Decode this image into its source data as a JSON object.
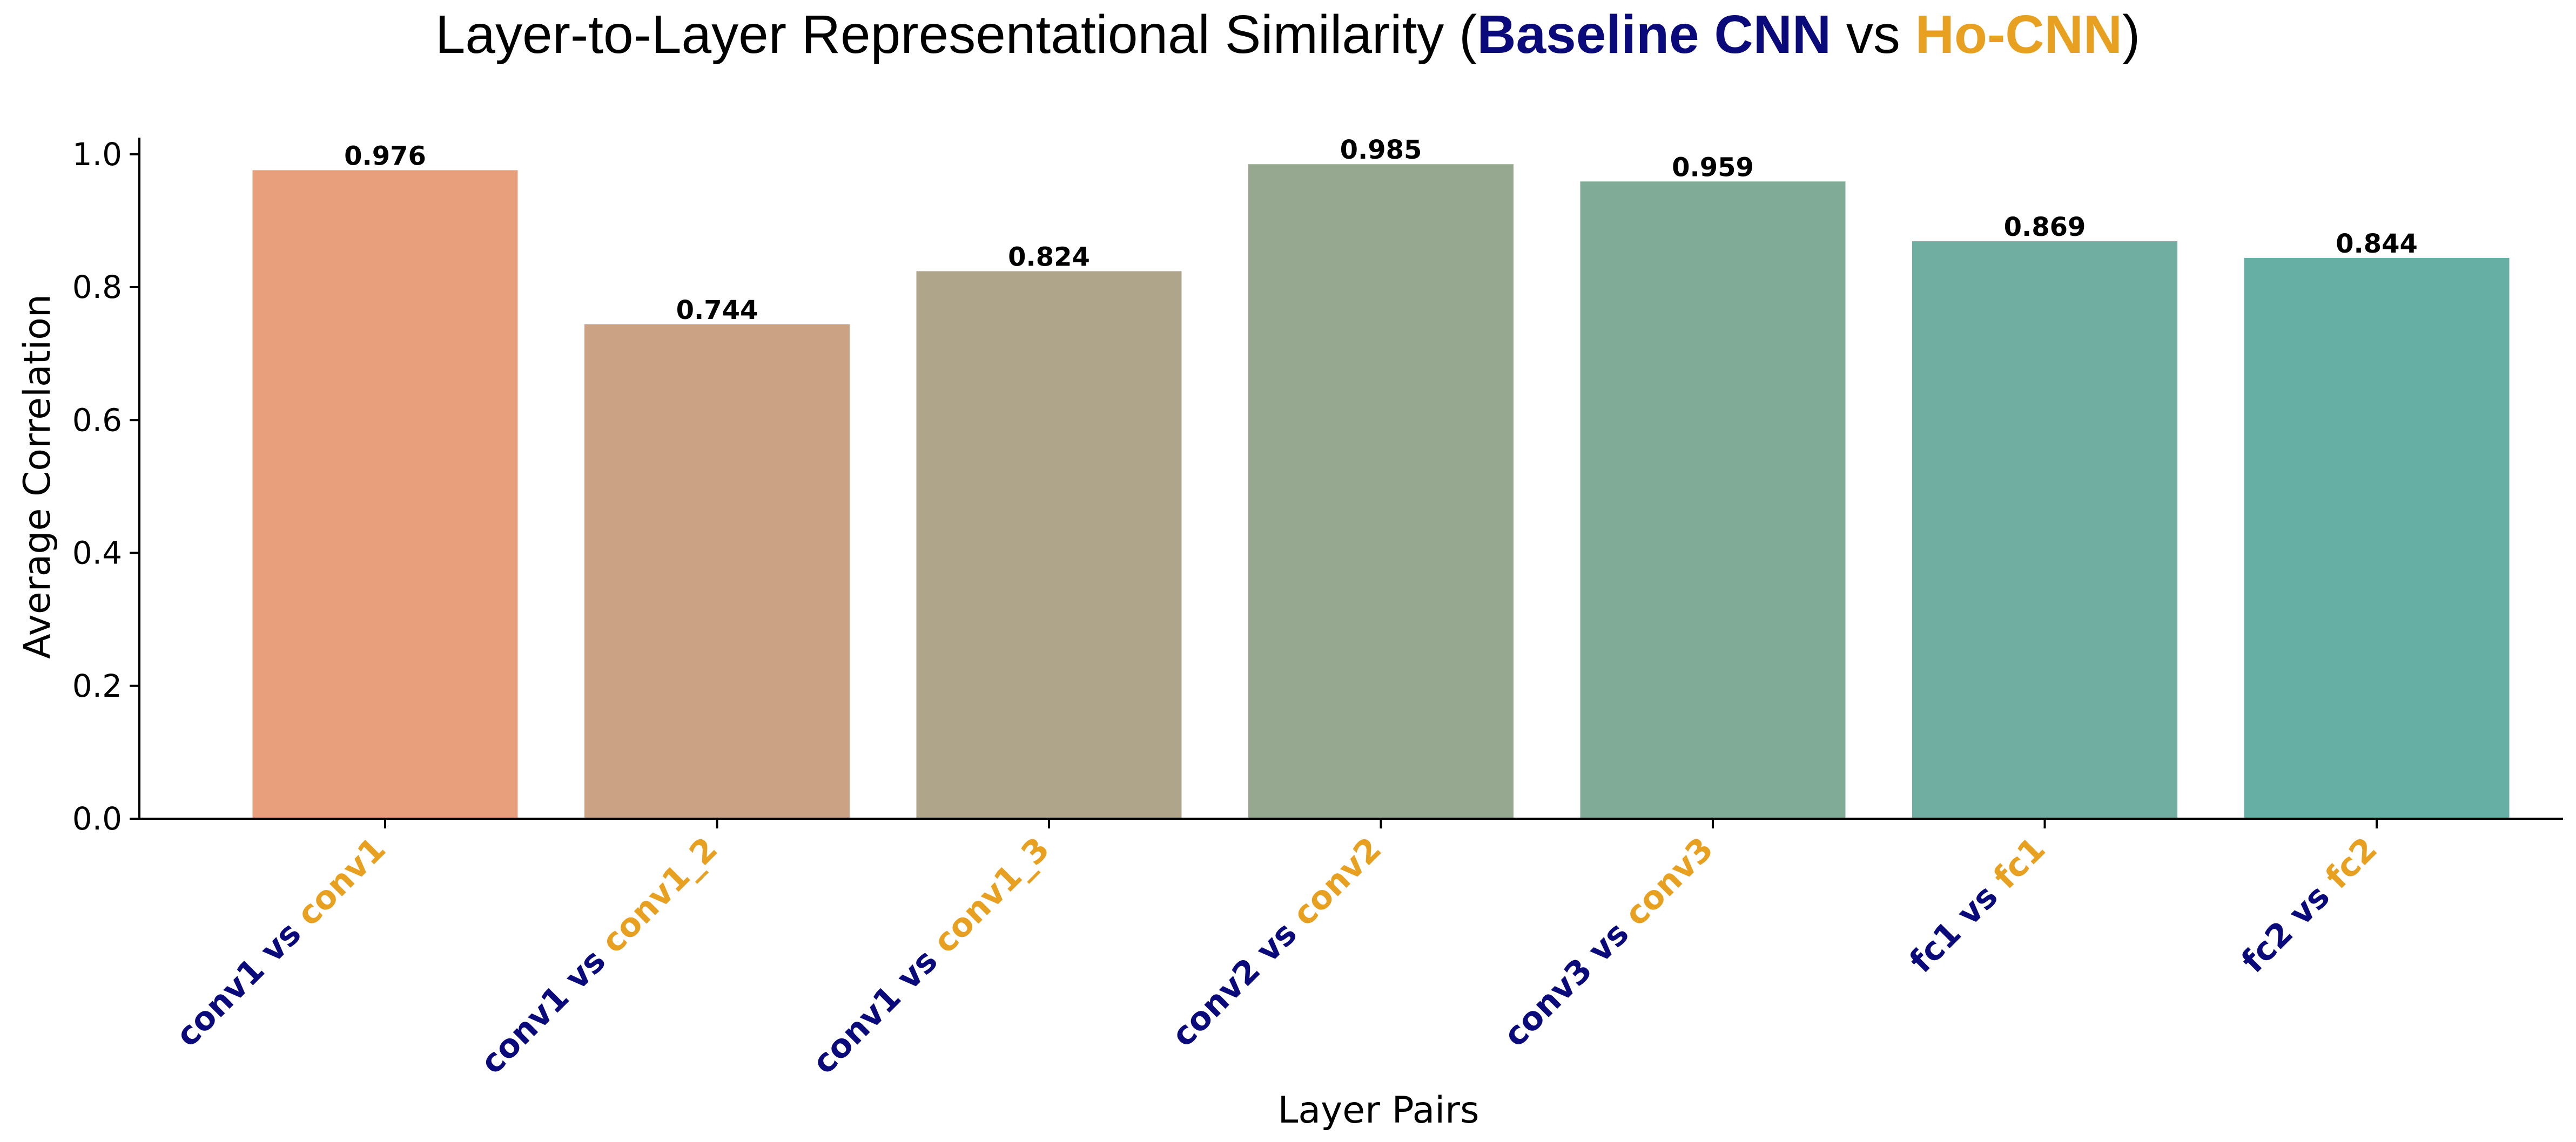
{
  "chart_data": {
    "type": "bar",
    "title": {
      "prefix": "Layer-to-Layer Representational Similarity (",
      "model_a": "Baseline CNN",
      "connector": " vs ",
      "model_b": "Ho-CNN",
      "suffix": ")"
    },
    "xlabel": "Layer Pairs",
    "ylabel": "Average Correlation",
    "ylim": [
      0,
      1.0
    ],
    "yticks": [
      "0.0",
      "0.2",
      "0.4",
      "0.6",
      "0.8",
      "1.0"
    ],
    "grid": false,
    "categories": [
      {
        "left": "conv1",
        "vs": " vs ",
        "right": "conv1"
      },
      {
        "left": "conv1",
        "vs": " vs ",
        "right": "conv1_2"
      },
      {
        "left": "conv1",
        "vs": " vs ",
        "right": "conv1_3"
      },
      {
        "left": "conv2",
        "vs": " vs ",
        "right": "conv2"
      },
      {
        "left": "conv3",
        "vs": " vs ",
        "right": "conv3"
      },
      {
        "left": "fc1",
        "vs": " vs ",
        "right": "fc1"
      },
      {
        "left": "fc2",
        "vs": " vs ",
        "right": "fc2"
      }
    ],
    "values": [
      0.976,
      0.744,
      0.824,
      0.985,
      0.959,
      0.869,
      0.844
    ],
    "value_labels": [
      "0.976",
      "0.744",
      "0.824",
      "0.985",
      "0.959",
      "0.869",
      "0.844"
    ],
    "bar_colors": [
      "#E8A07C",
      "#CBA284",
      "#AFA58A",
      "#96A890",
      "#80AB97",
      "#6FAEA0",
      "#66AFA5"
    ],
    "colors": {
      "baseline": "#0A0A7A",
      "ho": "#E8A020",
      "axis": "#000000"
    }
  }
}
